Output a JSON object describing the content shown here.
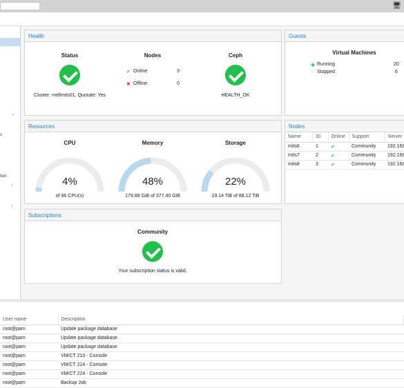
{
  "topbar": {
    "icon": "monitor-icon",
    "icon_glyph": "🖥"
  },
  "sidebar": {
    "fragments": [
      "s",
      "tion"
    ]
  },
  "health": {
    "header": "Health",
    "status_title": "Status",
    "cluster_text": "Cluster: mellmits01, Quorate: Yes",
    "nodes_title": "Nodes",
    "online_label": "Online",
    "online_count": "3",
    "offline_label": "Offline",
    "offline_count": "0",
    "ceph_title": "Ceph",
    "ceph_status": "HEALTH_OK"
  },
  "guests": {
    "header": "Guests",
    "vm_title": "Virtual Machines",
    "running_label": "Running",
    "running_count": "20",
    "stopped_label": "Stopped",
    "stopped_count": "6"
  },
  "resources": {
    "header": "Resources",
    "cpu": {
      "title": "CPU",
      "value": "4%",
      "detail": "of 96 CPU(s)",
      "fraction": 0.04
    },
    "memory": {
      "title": "Memory",
      "value": "48%",
      "detail": "179.88 GiB of 377.40 GiB",
      "fraction": 0.48
    },
    "storage": {
      "title": "Storage",
      "value": "22%",
      "detail": "19.14 TiB of 88.12 TiB",
      "fraction": 0.22
    }
  },
  "nodes": {
    "header": "Nodes",
    "columns": [
      "Name",
      "ID",
      "Online",
      "Support",
      "Server"
    ],
    "rows": [
      {
        "name": "mits6",
        "id": "1",
        "support": "Community",
        "server": "192.168"
      },
      {
        "name": "mits7",
        "id": "2",
        "support": "Community",
        "server": "192.168"
      },
      {
        "name": "mits8",
        "id": "3",
        "support": "Community",
        "server": "192.168"
      }
    ]
  },
  "subscriptions": {
    "header": "Subscriptions",
    "title": "Community",
    "message": "Your subscription status is valid."
  },
  "tasks": {
    "columns": [
      "User name",
      "Description"
    ],
    "rows": [
      {
        "user": "root@pam",
        "desc": "Update package database"
      },
      {
        "user": "root@pam",
        "desc": "Update package database"
      },
      {
        "user": "root@pam",
        "desc": "Update package database"
      },
      {
        "user": "root@pam",
        "desc": "VM/CT 210 - Console"
      },
      {
        "user": "root@pam",
        "desc": "VM/CT 224 - Console"
      },
      {
        "user": "root@pam",
        "desc": "VM/CT 224 - Console"
      },
      {
        "user": "root@pam",
        "desc": "Backup Job"
      }
    ]
  },
  "colors": {
    "accent": "#2a7fc9",
    "ok": "#21bf4b",
    "gauge_track": "#ececec",
    "gauge_fill": "#b8d8f0"
  }
}
